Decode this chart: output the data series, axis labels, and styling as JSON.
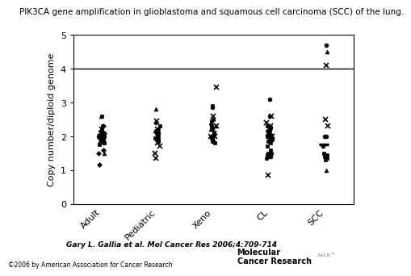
{
  "title": "PIK3CA gene amplification in glioblastoma and squamous cell carcinoma (SCC) of the lung.",
  "ylabel": "Copy number/diploid genome",
  "categories": [
    "Adult",
    "Pediatric",
    "Xeno",
    "CL",
    "SCC"
  ],
  "ylim": [
    0,
    5
  ],
  "yticks": [
    0,
    1,
    2,
    3,
    4,
    5
  ],
  "threshold_line": 4.0,
  "citation": "Gary L. Gallia et al. Mol Cancer Res 2006;4:709-714",
  "copyright": "©2006 by American Association for Cancer Research",
  "data": {
    "Adult": {
      "square": [
        2.6,
        2.3,
        2.2,
        2.2,
        2.1,
        2.1,
        2.0,
        2.0,
        2.0,
        2.0,
        1.9,
        1.9,
        1.85,
        1.8,
        1.75
      ],
      "diamond": [
        1.15,
        1.5,
        1.6,
        2.0,
        2.05,
        2.1,
        2.3
      ],
      "triangle": [
        2.6,
        2.1,
        2.0,
        2.0,
        1.8,
        1.5
      ],
      "cross": [
        2.2,
        2.1,
        2.0,
        1.9,
        1.85,
        1.8
      ],
      "circle": [
        2.0,
        2.0,
        2.0,
        1.95
      ]
    },
    "Pediatric": {
      "square": [
        2.3,
        2.2,
        2.1,
        2.05,
        2.0,
        1.95,
        1.9,
        1.85
      ],
      "triangle": [
        2.8,
        2.15,
        2.0
      ],
      "cross": [
        2.45,
        2.2,
        1.8,
        1.7,
        1.5,
        1.35
      ],
      "circle": [
        2.4,
        2.1
      ]
    },
    "Xeno": {
      "square": [
        2.9,
        2.5,
        2.45,
        2.3,
        2.25,
        2.1,
        2.0,
        1.95,
        1.85,
        1.8
      ],
      "triangle": [
        2.4,
        2.3,
        2.2
      ],
      "cross": [
        3.45,
        2.6,
        2.3,
        2.1,
        2.0,
        2.0
      ],
      "circle": [
        2.85,
        2.3,
        2.2,
        2.0,
        1.95,
        1.85
      ]
    },
    "CL": {
      "square": [
        2.3,
        2.25,
        2.2,
        2.15,
        2.1,
        2.0,
        1.95,
        1.9,
        1.85,
        1.8,
        1.7,
        1.6,
        1.5,
        1.45,
        1.4,
        1.35
      ],
      "cross": [
        2.6,
        2.4,
        2.3,
        2.1,
        2.0,
        2.0,
        0.85
      ],
      "circle": [
        3.1,
        2.6,
        2.2,
        2.0,
        1.95,
        1.85,
        1.5,
        1.4
      ]
    },
    "SCC": {
      "square": [
        1.5,
        1.45,
        1.4,
        1.35,
        1.3
      ],
      "triangle": [
        4.5,
        1.0
      ],
      "cross": [
        4.1,
        2.5,
        2.3
      ],
      "circle": [
        4.7,
        2.0,
        2.0,
        1.7
      ],
      "dash": [
        1.75
      ]
    }
  }
}
